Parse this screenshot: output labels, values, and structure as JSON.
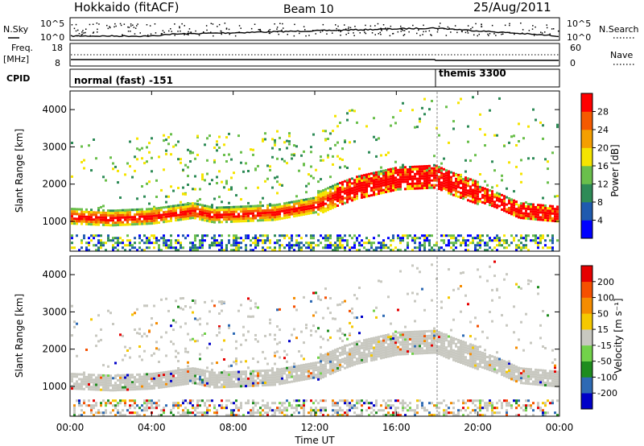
{
  "header": {
    "station": "Hokkaido (fitACF)",
    "beam": "Beam 10",
    "date": "25/Aug/2011"
  },
  "panel_labels": {
    "nsky": "N.Sky",
    "nsearch": "N.Search",
    "freq_line1": "Freq.",
    "freq_line2": "[MHz]",
    "nave": "Nave",
    "cpid": "CPID"
  },
  "top_axes": {
    "noise_ticks": [
      "10^5",
      "10^0"
    ],
    "noise_right_ticks": [
      "10^5",
      "10^0"
    ],
    "freq_ticks": [
      "18",
      "8"
    ],
    "nave_ticks": [
      "60",
      "0"
    ]
  },
  "cpid_modes": [
    {
      "label": "normal (fast) -151",
      "start_hour": 0,
      "end_hour": 18
    },
    {
      "label": "themis 3300",
      "start_hour": 18,
      "end_hour": 24
    }
  ],
  "chart_data": [
    {
      "type": "heatmap",
      "name": "power",
      "ylabel": "Slant Range [km]",
      "xlabel": "Time UT",
      "xlim_hours": [
        0,
        24
      ],
      "ylim_km": [
        200,
        4500
      ],
      "yticks": [
        "1000",
        "2000",
        "3000",
        "4000"
      ],
      "xticks": [
        "00:00",
        "04:00",
        "08:00",
        "12:00",
        "16:00",
        "20:00",
        "00:00"
      ],
      "colorbar": {
        "label": "Power [dB]",
        "ticks": [
          "28",
          "24",
          "20",
          "16",
          "12",
          "8",
          "4"
        ],
        "colors": [
          "#0000ff",
          "#1f5aaf",
          "#2e8b57",
          "#6abf4b",
          "#f5e400",
          "#f59f00",
          "#f55a00",
          "#ff0000"
        ]
      },
      "main_band_km": [
        [
          0,
          1150
        ],
        [
          2,
          1100
        ],
        [
          4,
          1150
        ],
        [
          6,
          1300
        ],
        [
          7,
          1180
        ],
        [
          8,
          1200
        ],
        [
          10,
          1250
        ],
        [
          12,
          1450
        ],
        [
          13,
          1700
        ],
        [
          14,
          1900
        ],
        [
          16,
          2150
        ],
        [
          17.9,
          2200
        ],
        [
          18.5,
          2050
        ],
        [
          20,
          1750
        ],
        [
          21,
          1550
        ],
        [
          22,
          1300
        ],
        [
          23,
          1250
        ],
        [
          24,
          1200
        ]
      ]
    },
    {
      "type": "heatmap",
      "name": "velocity",
      "ylabel": "Slant Range [km]",
      "xlabel": "Time UT",
      "xlim_hours": [
        0,
        24
      ],
      "ylim_km": [
        200,
        4500
      ],
      "yticks": [
        "1000",
        "2000",
        "3000",
        "4000"
      ],
      "xticks": [
        "00:00",
        "04:00",
        "08:00",
        "12:00",
        "16:00",
        "20:00",
        "00:00"
      ],
      "colorbar": {
        "label": "Velocity [m s⁻¹]",
        "ticks": [
          "200",
          "100",
          "50",
          "15",
          "-15",
          "-50",
          "-100",
          "-200"
        ],
        "colors": [
          "#0000c8",
          "#2e6ab4",
          "#1e8c1e",
          "#72d24a",
          "#c8c8c0",
          "#f5c800",
          "#f58c00",
          "#f55000",
          "#e60000"
        ]
      }
    }
  ]
}
